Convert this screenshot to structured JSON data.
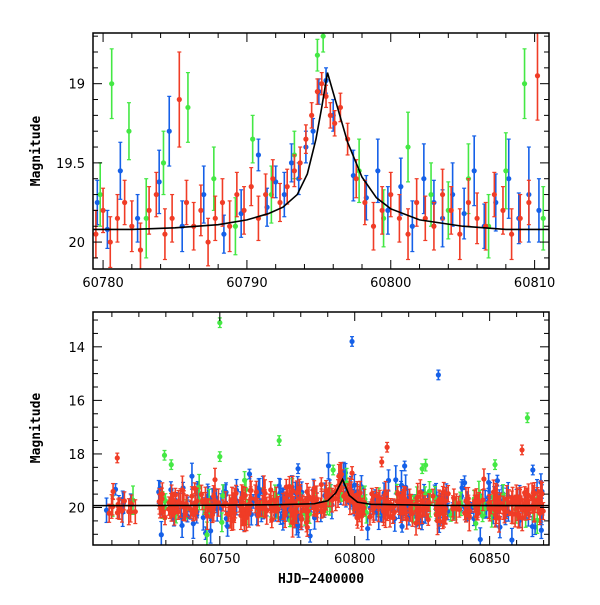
{
  "chart_data": [
    {
      "type": "scatter",
      "title": "",
      "xlabel": "",
      "ylabel": "Magnitude",
      "xlim": [
        60779.3,
        60811.0
      ],
      "ylim": [
        20.17,
        18.68
      ],
      "y_inverted": true,
      "xticks": [
        60780,
        60790,
        60800,
        60810
      ],
      "yticks": [
        19,
        19.5,
        20
      ],
      "ytick_labels": [
        "19",
        "19.5",
        "20"
      ],
      "colors": {
        "blue": "#1560e8",
        "green": "#44e844",
        "red": "#f03c26",
        "model": "#000000"
      },
      "model_curve": {
        "x": [
          60779.3,
          60782,
          60785,
          60788,
          60790,
          60791.5,
          60792.5,
          60793.5,
          60794.2,
          60794.8,
          60795.2,
          60795.6,
          60796.2,
          60797,
          60798,
          60799,
          60800,
          60802,
          60805,
          60808,
          60811
        ],
        "y": [
          19.92,
          19.92,
          19.91,
          19.89,
          19.86,
          19.82,
          19.78,
          19.7,
          19.57,
          19.35,
          19.15,
          18.93,
          19.12,
          19.37,
          19.59,
          19.72,
          19.79,
          19.86,
          19.9,
          19.92,
          19.92
        ]
      },
      "series": [
        {
          "color": "blue",
          "x": [
            60779.6,
            60780.3,
            60781.2,
            60782.4,
            60783.9,
            60784.6,
            60785.5,
            60787.0,
            60788.4,
            60789.6,
            60790.8,
            60791.4,
            60792.0,
            60792.6,
            60793.1,
            60793.6,
            60794.1,
            60794.6,
            60795.0,
            60795.5,
            60796.0,
            60797.4,
            60798.3,
            60799.1,
            60799.8,
            60800.7,
            60801.5,
            60802.3,
            60803.0,
            60803.6,
            60804.3,
            60805.1,
            60805.8,
            60806.5,
            60807.3,
            60808.2,
            60808.9,
            60809.6,
            60810.3
          ],
          "y": [
            19.75,
            19.92,
            19.55,
            19.85,
            19.62,
            19.3,
            19.9,
            19.7,
            19.95,
            19.82,
            19.45,
            19.78,
            19.62,
            19.7,
            19.5,
            19.6,
            19.4,
            19.3,
            19.05,
            18.98,
            19.2,
            19.58,
            19.72,
            19.55,
            19.8,
            19.65,
            19.9,
            19.6,
            19.75,
            19.85,
            19.7,
            19.82,
            19.55,
            19.9,
            19.75,
            19.6,
            19.85,
            19.7,
            19.8
          ],
          "err": [
            0.14,
            0.12,
            0.18,
            0.15,
            0.2,
            0.22,
            0.16,
            0.18,
            0.12,
            0.15,
            0.1,
            0.12,
            0.1,
            0.14,
            0.12,
            0.1,
            0.1,
            0.08,
            0.08,
            0.08,
            0.1,
            0.16,
            0.14,
            0.2,
            0.15,
            0.18,
            0.16,
            0.22,
            0.14,
            0.18,
            0.2,
            0.16,
            0.22,
            0.14,
            0.18,
            0.25,
            0.16,
            0.3,
            0.2
          ]
        },
        {
          "color": "green",
          "x": [
            60779.8,
            60780.6,
            60781.8,
            60783.0,
            60784.2,
            60785.9,
            60787.7,
            60789.2,
            60790.4,
            60791.7,
            60793.3,
            60794.9,
            60795.3,
            60797.8,
            60799.5,
            60801.2,
            60802.8,
            60804.0,
            60805.4,
            60806.8,
            60808.0,
            60809.3,
            60810.6
          ],
          "y": [
            19.7,
            19.0,
            19.3,
            19.85,
            19.5,
            19.15,
            19.6,
            19.9,
            19.35,
            19.7,
            19.45,
            18.82,
            18.7,
            19.55,
            19.85,
            19.4,
            19.7,
            19.8,
            19.6,
            19.9,
            19.55,
            19.0,
            19.85
          ],
          "err": [
            0.2,
            0.22,
            0.18,
            0.25,
            0.2,
            0.22,
            0.2,
            0.18,
            0.15,
            0.18,
            0.15,
            0.1,
            0.1,
            0.2,
            0.18,
            0.22,
            0.2,
            0.18,
            0.22,
            0.2,
            0.24,
            0.22,
            0.2
          ]
        },
        {
          "color": "red",
          "x": [
            60779.5,
            60780.0,
            60780.5,
            60781.0,
            60781.5,
            60782.0,
            60782.6,
            60783.2,
            60783.7,
            60784.3,
            60784.8,
            60785.3,
            60785.8,
            60786.3,
            60786.8,
            60787.3,
            60787.8,
            60788.3,
            60788.8,
            60789.3,
            60789.8,
            60790.3,
            60790.8,
            60791.3,
            60791.8,
            60792.3,
            60792.8,
            60793.3,
            60793.7,
            60794.1,
            60794.5,
            60794.9,
            60795.2,
            60795.5,
            60795.8,
            60796.1,
            60796.5,
            60797.0,
            60797.6,
            60798.2,
            60798.8,
            60799.4,
            60800.0,
            60800.6,
            60801.2,
            60801.8,
            60802.4,
            60803.0,
            60803.6,
            60804.2,
            60804.8,
            60805.4,
            60806.0,
            60806.6,
            60807.2,
            60807.8,
            60808.4,
            60809.0,
            60809.6,
            60810.2
          ],
          "y": [
            19.95,
            19.8,
            20.0,
            19.85,
            19.75,
            19.9,
            20.05,
            19.8,
            19.7,
            19.95,
            19.85,
            19.1,
            19.75,
            19.9,
            19.8,
            20.0,
            19.85,
            19.75,
            19.9,
            19.7,
            19.8,
            19.65,
            19.85,
            19.7,
            19.6,
            19.75,
            19.65,
            19.55,
            19.5,
            19.35,
            19.2,
            19.05,
            19.0,
            19.08,
            19.2,
            19.25,
            19.15,
            19.35,
            19.6,
            19.75,
            19.9,
            19.8,
            19.7,
            19.85,
            19.95,
            19.75,
            19.85,
            19.9,
            19.7,
            19.8,
            19.95,
            19.75,
            19.85,
            19.9,
            19.7,
            19.8,
            19.95,
            19.85,
            19.75,
            18.95
          ],
          "err": [
            0.15,
            0.14,
            0.16,
            0.15,
            0.14,
            0.16,
            0.17,
            0.15,
            0.14,
            0.16,
            0.15,
            0.3,
            0.14,
            0.15,
            0.16,
            0.15,
            0.14,
            0.15,
            0.16,
            0.14,
            0.15,
            0.12,
            0.14,
            0.13,
            0.12,
            0.12,
            0.11,
            0.1,
            0.1,
            0.09,
            0.08,
            0.08,
            0.07,
            0.07,
            0.08,
            0.08,
            0.09,
            0.1,
            0.12,
            0.14,
            0.15,
            0.15,
            0.14,
            0.15,
            0.16,
            0.15,
            0.14,
            0.15,
            0.16,
            0.15,
            0.16,
            0.15,
            0.16,
            0.15,
            0.14,
            0.15,
            0.16,
            0.15,
            0.14,
            0.28
          ]
        }
      ]
    },
    {
      "type": "scatter",
      "title": "",
      "xlabel": "HJD−2400000",
      "ylabel": "Magnitude",
      "xlim": [
        60703,
        60872
      ],
      "ylim": [
        21.4,
        12.7
      ],
      "y_inverted": true,
      "xticks": [
        60750,
        60800,
        60850
      ],
      "yticks": [
        14,
        16,
        18,
        20
      ],
      "ytick_labels": [
        "14",
        "16",
        "18",
        "20"
      ],
      "colors": {
        "blue": "#1560e8",
        "green": "#44e844",
        "red": "#f03c26",
        "model": "#000000"
      },
      "model_curve": {
        "x": [
          60703,
          60740,
          60770,
          60785,
          60790,
          60793,
          60795.5,
          60798,
          60801,
          60806,
          60830,
          60872
        ],
        "y": [
          19.93,
          19.92,
          19.9,
          19.86,
          19.75,
          19.45,
          18.95,
          19.55,
          19.8,
          19.88,
          19.92,
          19.93
        ]
      },
      "outliers": [
        {
          "color": "green",
          "x": 60750.0,
          "y": 13.1
        },
        {
          "color": "blue",
          "x": 60799.0,
          "y": 13.8
        },
        {
          "color": "blue",
          "x": 60831.0,
          "y": 15.05
        },
        {
          "color": "green",
          "x": 60864.0,
          "y": 16.65
        },
        {
          "color": "red",
          "x": 60862.0,
          "y": 17.85
        },
        {
          "color": "green",
          "x": 60772.0,
          "y": 17.5
        },
        {
          "color": "green",
          "x": 60750.0,
          "y": 18.1
        },
        {
          "color": "green",
          "x": 60729.5,
          "y": 18.05
        },
        {
          "color": "green",
          "x": 60732.0,
          "y": 18.4
        },
        {
          "color": "red",
          "x": 60712.0,
          "y": 18.15
        },
        {
          "color": "red",
          "x": 60812.0,
          "y": 17.75
        },
        {
          "color": "red",
          "x": 60810.0,
          "y": 18.3
        },
        {
          "color": "blue",
          "x": 60818.5,
          "y": 18.45
        },
        {
          "color": "blue",
          "x": 60761.0,
          "y": 18.75
        },
        {
          "color": "blue",
          "x": 60779.0,
          "y": 18.55
        },
        {
          "color": "green",
          "x": 60792.0,
          "y": 18.6
        },
        {
          "color": "green",
          "x": 60825.0,
          "y": 18.55
        },
        {
          "color": "green",
          "x": 60852.0,
          "y": 18.4
        },
        {
          "color": "blue",
          "x": 60866.0,
          "y": 18.6
        }
      ],
      "scatter_seed": 7,
      "scatter_x_range": [
        60708,
        60870
      ],
      "scatter_gap": [
        60720,
        60727
      ]
    }
  ]
}
